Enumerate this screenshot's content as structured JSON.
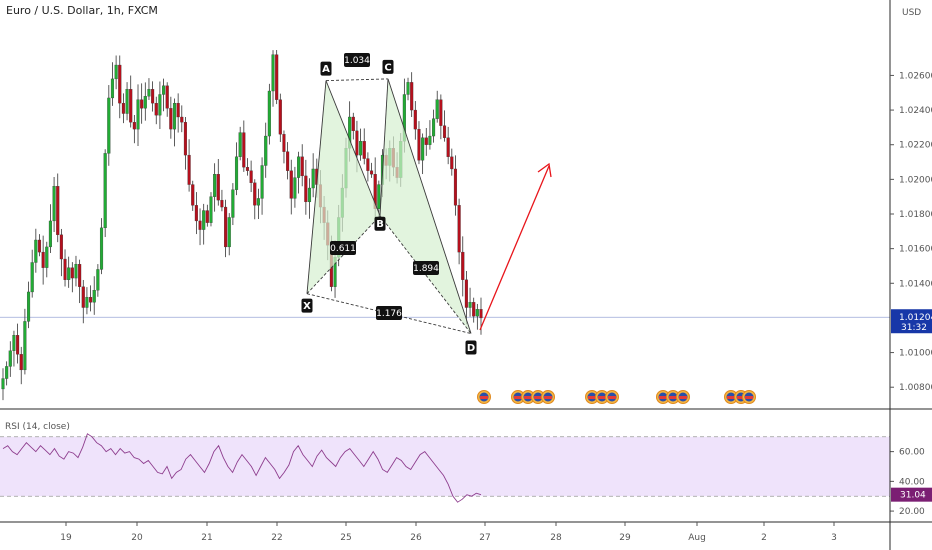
{
  "header": {
    "title": "Euro / U.S. Dollar, 1h, FXCM",
    "currency": "USD"
  },
  "colors": {
    "up": "#22ab35",
    "down": "#b5101d",
    "pattern_fill": "#d6efd0",
    "pattern_line": "#3a3a3a",
    "arrow": "#e8151b",
    "rsi_line": "#8e3e8e",
    "rsi_band": "#efe3fb",
    "price_badge": "#1737a8",
    "rsi_badge": "#7b1f73"
  },
  "chart_data": [
    {
      "type": "candlestick",
      "x_ticks": [
        "19",
        "20",
        "21",
        "22",
        "25",
        "26",
        "27",
        "28",
        "29",
        "Aug",
        "2",
        "3"
      ],
      "y_ticks": [
        "1.02600",
        "1.02400",
        "1.02200",
        "1.02000",
        "1.01800",
        "1.01600",
        "1.01400",
        "1.01000",
        "1.00800"
      ],
      "ylim": [
        1.0068,
        1.0292
      ],
      "current_price": "1.01204",
      "countdown": "31:32",
      "close_path": [
        1.0085,
        1.0092,
        1.0101,
        1.011,
        1.0099,
        1.009,
        1.0118,
        1.0135,
        1.0152,
        1.0165,
        1.0158,
        1.0149,
        1.0161,
        1.0176,
        1.0196,
        1.0168,
        1.0154,
        1.0142,
        1.0149,
        1.0143,
        1.0151,
        1.0138,
        1.0126,
        1.0132,
        1.0129,
        1.0136,
        1.0148,
        1.0172,
        1.0215,
        1.0247,
        1.0258,
        1.0266,
        1.0244,
        1.0238,
        1.0252,
        1.0233,
        1.0229,
        1.0246,
        1.0241,
        1.0248,
        1.0252,
        1.0244,
        1.0237,
        1.0249,
        1.0254,
        1.0241,
        1.0229,
        1.0244,
        1.0236,
        1.0233,
        1.0214,
        1.0197,
        1.0185,
        1.0176,
        1.0171,
        1.0182,
        1.0175,
        1.019,
        1.0203,
        1.0188,
        1.0184,
        1.0161,
        1.0178,
        1.0194,
        1.0213,
        1.0227,
        1.0207,
        1.0205,
        1.0198,
        1.0185,
        1.0189,
        1.0208,
        1.0225,
        1.0251,
        1.0272,
        1.0246,
        1.0226,
        1.0216,
        1.0205,
        1.0189,
        1.0201,
        1.0213,
        1.0202,
        1.0187,
        1.0195,
        1.0206,
        1.0197,
        1.0184,
        1.0175,
        1.0162,
        1.0138,
        1.0155,
        1.0178,
        1.0195,
        1.0218,
        1.0236,
        1.0228,
        1.0214,
        1.0222,
        1.0212,
        1.0205,
        1.0203,
        1.0183,
        1.0197,
        1.0214,
        1.0208,
        1.0218,
        1.0207,
        1.0201,
        1.0222,
        1.0249,
        1.0256,
        1.024,
        1.0229,
        1.0211,
        1.0224,
        1.022,
        1.0225,
        1.0235,
        1.0246,
        1.0231,
        1.0224,
        1.0213,
        1.0206,
        1.0185,
        1.0158,
        1.0142,
        1.0126,
        1.0129,
        1.0121,
        1.0125,
        1.012
      ],
      "rsi": {
        "title": "RSI (14, close)",
        "y_ticks": [
          "60.00",
          "40.00",
          "20.00"
        ],
        "ylim": [
          14,
          88
        ],
        "band": [
          30,
          70
        ],
        "current": "31.04",
        "values": [
          62,
          64,
          60,
          58,
          62,
          66,
          63,
          60,
          64,
          61,
          58,
          62,
          57,
          55,
          60,
          59,
          56,
          63,
          72,
          70,
          66,
          64,
          60,
          62,
          58,
          62,
          59,
          60,
          56,
          55,
          52,
          54,
          50,
          46,
          45,
          50,
          42,
          46,
          48,
          55,
          58,
          54,
          50,
          46,
          52,
          60,
          64,
          56,
          50,
          46,
          53,
          58,
          54,
          50,
          44,
          50,
          56,
          52,
          48,
          42,
          46,
          51,
          60,
          64,
          58,
          54,
          50,
          57,
          61,
          56,
          53,
          50,
          56,
          60,
          62,
          58,
          54,
          50,
          55,
          60,
          55,
          48,
          46,
          51,
          56,
          54,
          50,
          48,
          53,
          58,
          60,
          56,
          52,
          48,
          44,
          38,
          30,
          26,
          28,
          31,
          30,
          32,
          31
        ]
      }
    }
  ],
  "pattern": {
    "points": [
      {
        "name": "X",
        "price": 1.0134
      },
      {
        "name": "A",
        "price": 1.0257
      },
      {
        "name": "B",
        "price": 1.0179
      },
      {
        "name": "C",
        "price": 1.0258
      },
      {
        "name": "D",
        "price": 1.0111
      }
    ],
    "ratios": {
      "xa_b": "0.611",
      "ac": "1.034",
      "bc_d": "1.894",
      "xd": "1.176"
    }
  }
}
